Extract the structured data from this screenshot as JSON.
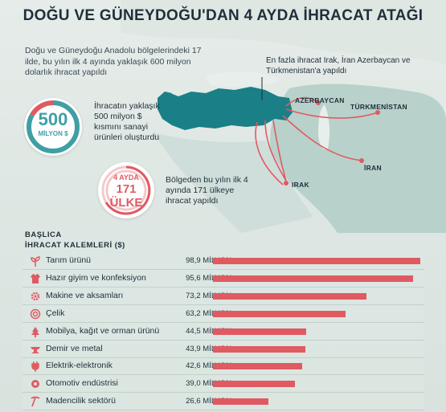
{
  "title": "DOĞU VE GÜNEYDOĞU'DAN 4 AYDA İHRACAT ATAĞI",
  "intro": "Doğu ve Güneydoğu Anadolu bölgelerindeki 17 ilde, bu yılın ilk 4 ayında yaklaşık 600 milyon dolarlık ihracat yapıldı",
  "top_callout": "En fazla ihracat Irak, İran Azerbaycan ve Türkmenistan'a yapıldı",
  "badge1": {
    "big": "500",
    "small": "MİLYON $",
    "text": "İhracatın yaklaşık 500 milyon $ kısmını sanayi ürünleri oluşturdu",
    "fill": 0.83
  },
  "badge2": {
    "top": "4 AYDA",
    "big": "171 ÜLKE",
    "text": "Bölgeden bu yılın ilk 4 ayında 171 ülkeye ihracat yapıldı"
  },
  "countries": {
    "azerbaycan": "AZERBAYCAN",
    "turkmenistan": "TÜRKMENİSTAN",
    "iran": "İRAN",
    "irak": "IRAK"
  },
  "section": {
    "line1": "BAŞLICA",
    "line2": "İHRACAT KALEMLERİ ($)"
  },
  "colors": {
    "accent": "#e05a62",
    "teal": "#3f9fa5",
    "turkey": "#1a7f86",
    "land": "#b6cfc9"
  },
  "chart_data": {
    "type": "bar",
    "orientation": "horizontal",
    "title": "BAŞLICA İHRACAT KALEMLERİ ($)",
    "unit": "MİLYON",
    "categories": [
      "Tarım ürünü",
      "Hazır giyim ve konfeksiyon",
      "Makine ve aksamları",
      "Çelik",
      "Mobilya, kağıt ve orman ürünü",
      "Demir ve metal",
      "Elektrik-elektronik",
      "Otomotiv endüstrisi",
      "Madencilik sektörü"
    ],
    "icons": [
      "plant-icon",
      "shirt-icon",
      "gear-icon",
      "steel-coil-icon",
      "tree-icon",
      "anvil-icon",
      "plug-icon",
      "car-gear-icon",
      "pickaxe-icon"
    ],
    "values": [
      98.9,
      95.6,
      73.2,
      63.2,
      44.5,
      43.9,
      42.6,
      39.0,
      26.6
    ],
    "value_labels": [
      "98,9 MİLYON",
      "95,6 MİLYON",
      "73,2 MİLYON",
      "63,2 MİLYON",
      "44,5 MİLYON",
      "43,9 MİLYON",
      "42,6 MİLYON",
      "39,0 MİLYON",
      "26,6 MİLYON"
    ],
    "xlim": [
      0,
      98.9
    ]
  }
}
